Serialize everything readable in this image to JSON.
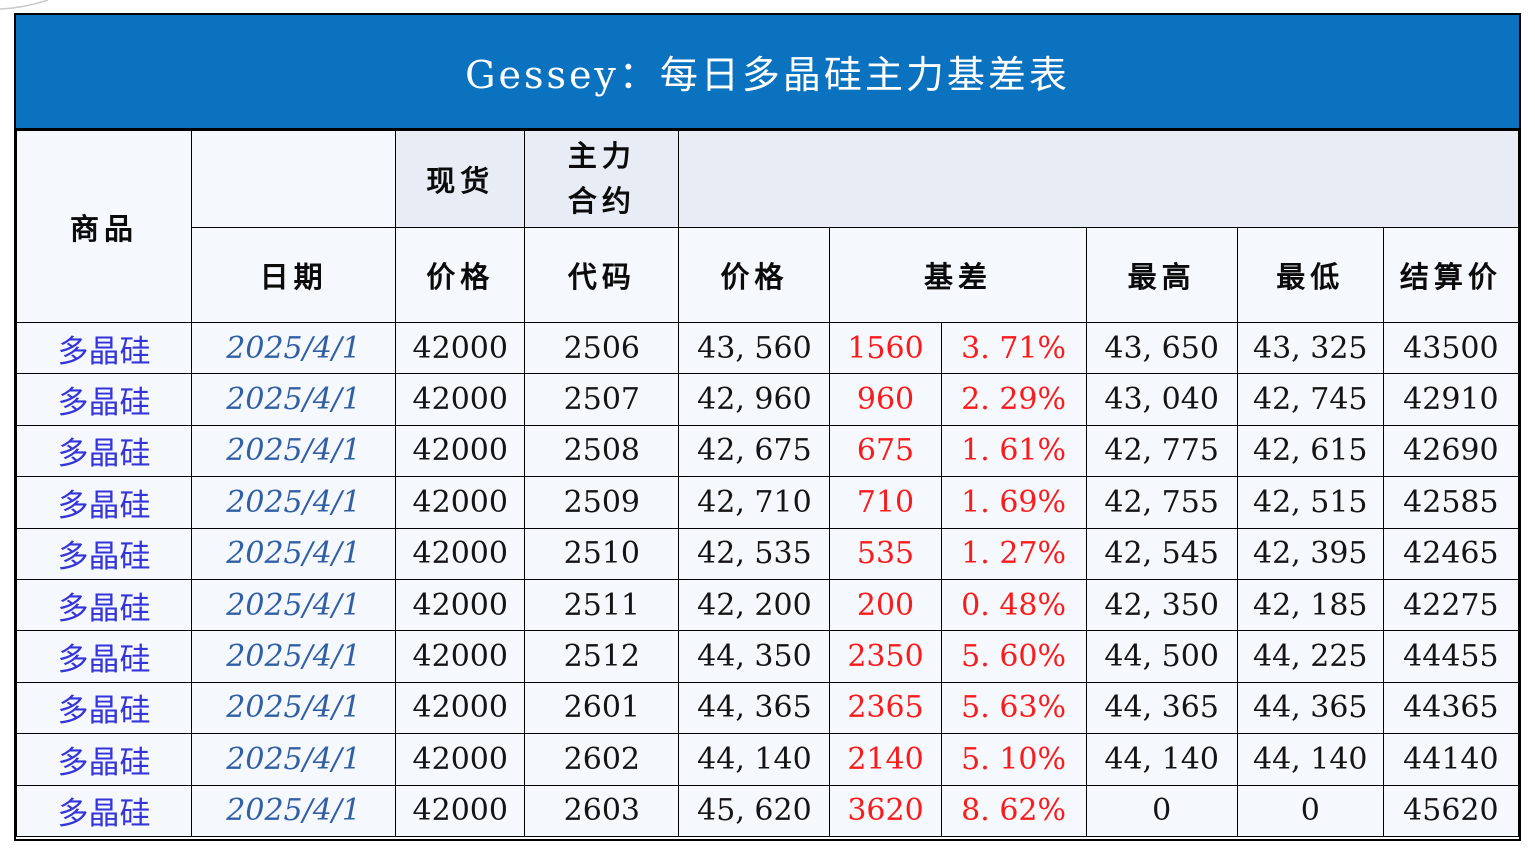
{
  "title_bar": {
    "title": "Gessey：每日多晶硅主力基差表"
  },
  "table": {
    "header": {
      "product": "商品",
      "date": "日期",
      "spot": "现货",
      "main_contract": "主力合约",
      "price_spot": "价格",
      "code": "代码",
      "price_main": "价格",
      "basis": "基差",
      "high": "最高",
      "low": "最低",
      "settle": "结算价"
    },
    "columns": [
      {
        "key": "product"
      },
      {
        "key": "date"
      },
      {
        "key": "spot_price"
      },
      {
        "key": "code"
      },
      {
        "key": "price"
      },
      {
        "key": "basis"
      },
      {
        "key": "basis_pct"
      },
      {
        "key": "high"
      },
      {
        "key": "low"
      },
      {
        "key": "settle"
      }
    ],
    "rows": [
      {
        "product": "多晶硅",
        "date": "2025/4/1",
        "spot_price": "42000",
        "code": "2506",
        "price": "43, 560",
        "basis": "1560",
        "basis_pct": "3. 71%",
        "high": "43, 650",
        "low": "43, 325",
        "settle": "43500"
      },
      {
        "product": "多晶硅",
        "date": "2025/4/1",
        "spot_price": "42000",
        "code": "2507",
        "price": "42, 960",
        "basis": "960",
        "basis_pct": "2. 29%",
        "high": "43, 040",
        "low": "42, 745",
        "settle": "42910"
      },
      {
        "product": "多晶硅",
        "date": "2025/4/1",
        "spot_price": "42000",
        "code": "2508",
        "price": "42, 675",
        "basis": "675",
        "basis_pct": "1. 61%",
        "high": "42, 775",
        "low": "42, 615",
        "settle": "42690"
      },
      {
        "product": "多晶硅",
        "date": "2025/4/1",
        "spot_price": "42000",
        "code": "2509",
        "price": "42, 710",
        "basis": "710",
        "basis_pct": "1. 69%",
        "high": "42, 755",
        "low": "42, 515",
        "settle": "42585"
      },
      {
        "product": "多晶硅",
        "date": "2025/4/1",
        "spot_price": "42000",
        "code": "2510",
        "price": "42, 535",
        "basis": "535",
        "basis_pct": "1. 27%",
        "high": "42, 545",
        "low": "42, 395",
        "settle": "42465"
      },
      {
        "product": "多晶硅",
        "date": "2025/4/1",
        "spot_price": "42000",
        "code": "2511",
        "price": "42, 200",
        "basis": "200",
        "basis_pct": "0. 48%",
        "high": "42, 350",
        "low": "42, 185",
        "settle": "42275"
      },
      {
        "product": "多晶硅",
        "date": "2025/4/1",
        "spot_price": "42000",
        "code": "2512",
        "price": "44, 350",
        "basis": "2350",
        "basis_pct": "5. 60%",
        "high": "44, 500",
        "low": "44, 225",
        "settle": "44455"
      },
      {
        "product": "多晶硅",
        "date": "2025/4/1",
        "spot_price": "42000",
        "code": "2601",
        "price": "44, 365",
        "basis": "2365",
        "basis_pct": "5. 63%",
        "high": "44, 365",
        "low": "44, 365",
        "settle": "44365"
      },
      {
        "product": "多晶硅",
        "date": "2025/4/1",
        "spot_price": "42000",
        "code": "2602",
        "price": "44, 140",
        "basis": "2140",
        "basis_pct": "5. 10%",
        "high": "44, 140",
        "low": "44, 140",
        "settle": "44140"
      },
      {
        "product": "多晶硅",
        "date": "2025/4/1",
        "spot_price": "42000",
        "code": "2603",
        "price": "45, 620",
        "basis": "3620",
        "basis_pct": "8. 62%",
        "high": "0",
        "low": "0",
        "settle": "45620"
      }
    ]
  },
  "colors": {
    "title_bar_bg": "#0B72C0",
    "title_text": "#FFFFFF",
    "header_accent_bg": "#E8EDF5",
    "cell_bg": "#F5F8FC",
    "grid_line": "#000000",
    "product_text": "#3434D8",
    "date_text": "#315FA5",
    "basis_text": "#FB1B1B",
    "number_text": "#141414"
  }
}
